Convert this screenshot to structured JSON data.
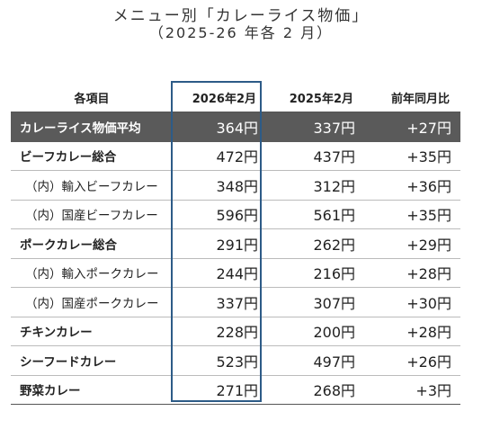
{
  "title": "メニュー別「カレーライス物価」",
  "subtitle": "（2025-26 年各 2 月）",
  "table": {
    "headers": [
      "各項目",
      "2026年2月",
      "2025年2月",
      "前年同月比"
    ],
    "rows": [
      {
        "item": "カレーライス物価平均",
        "current": "364円",
        "previous": "337円",
        "change": "+27円"
      },
      {
        "item": "ビーフカレー総合",
        "current": "472円",
        "previous": "437円",
        "change": "+35円"
      },
      {
        "item": "（内）輸入ビーフカレー",
        "current": "348円",
        "previous": "312円",
        "change": "+36円"
      },
      {
        "item": "（内）国産ビーフカレー",
        "current": "596円",
        "previous": "561円",
        "change": "+35円"
      },
      {
        "item": "ポークカレー総合",
        "current": "291円",
        "previous": "262円",
        "change": "+29円"
      },
      {
        "item": "（内）輸入ポークカレー",
        "current": "244円",
        "previous": "216円",
        "change": "+28円"
      },
      {
        "item": "（内）国産ポークカレー",
        "current": "337円",
        "previous": "307円",
        "change": "+30円"
      },
      {
        "item": "チキンカレー",
        "current": "228円",
        "previous": "200円",
        "change": "+28円"
      },
      {
        "item": "シーフードカレー",
        "current": "523円",
        "previous": "497円",
        "change": "+26円"
      },
      {
        "item": "野菜カレー",
        "current": "271円",
        "previous": "268円",
        "change": "+3円"
      }
    ]
  },
  "colors": {
    "highlight_row": "#5a5a5a",
    "current_column_outline": "#2d5b87"
  }
}
